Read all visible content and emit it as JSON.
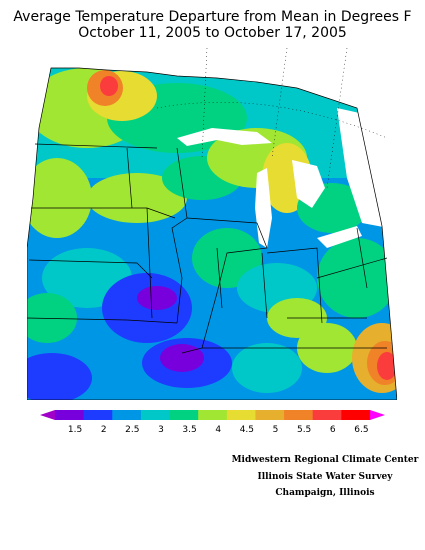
{
  "header": {
    "title_line1": "Average Temperature Departure from Mean in Degrees F",
    "title_line2": "October 11, 2005 to October 17, 2005"
  },
  "legend": {
    "labels": [
      "1.5",
      "2",
      "2.5",
      "3",
      "3.5",
      "4",
      "4.5",
      "5",
      "5.5",
      "6",
      "6.5"
    ],
    "colors": [
      "#a000c8",
      "#7800dc",
      "#1e3cff",
      "#0096e6",
      "#00c8c8",
      "#00d282",
      "#a0e632",
      "#e6dc32",
      "#e6af2d",
      "#f08228",
      "#fa3c3c",
      "#ff0000",
      "#ff00ff"
    ]
  },
  "credits": {
    "line1": "Midwestern Regional Climate Center",
    "line2": "Illinois State Water Survey",
    "line3": "Champaign, Illinois"
  }
}
